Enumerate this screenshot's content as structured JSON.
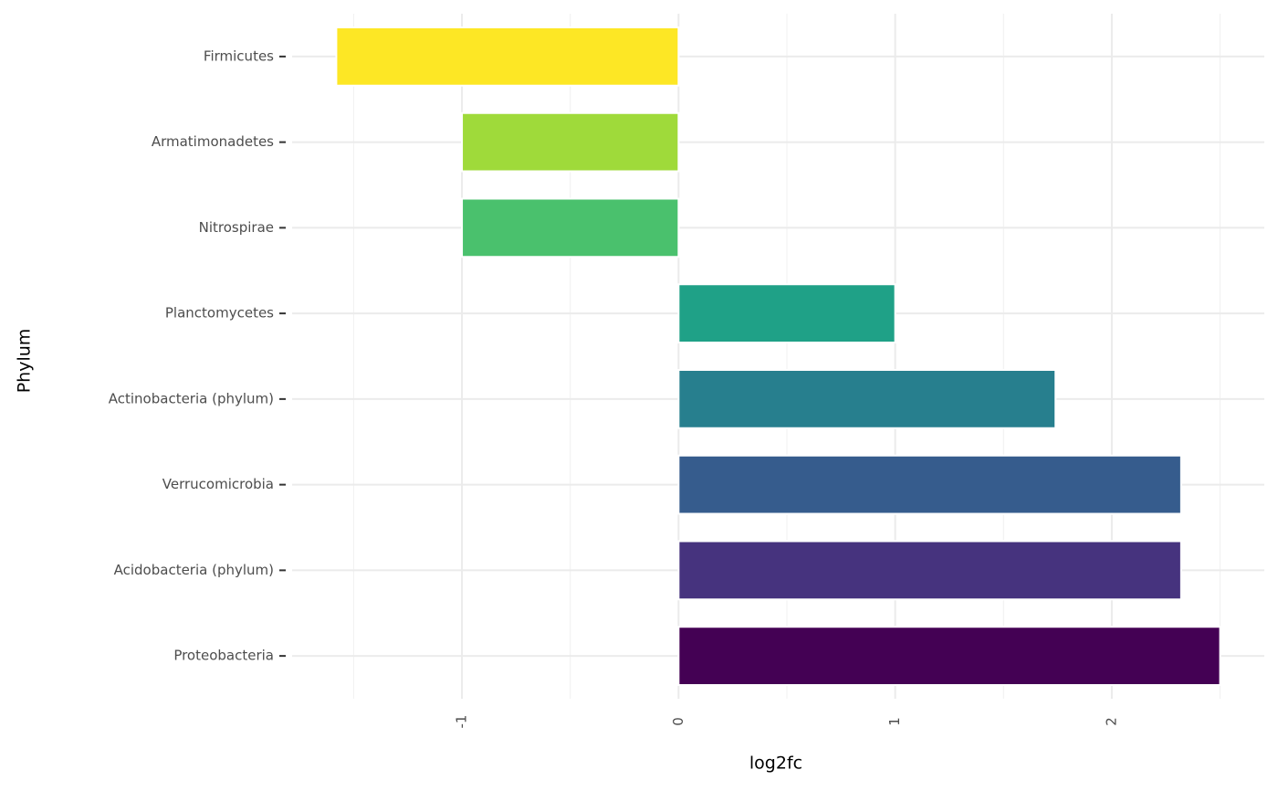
{
  "chart_data": {
    "type": "bar",
    "orientation": "horizontal",
    "x_label": "log2fc",
    "y_label": "Phylum",
    "categories": [
      "Firmicutes",
      "Armatimonadetes",
      "Nitrospirae",
      "Planctomycetes",
      "Actinobacteria (phylum)",
      "Verrucomicrobia",
      "Acidobacteria (phylum)",
      "Proteobacteria"
    ],
    "values": [
      -1.58,
      -1.0,
      -1.0,
      1.0,
      1.74,
      2.32,
      2.32,
      2.5
    ],
    "colors": [
      "#FDE725",
      "#9FDA3A",
      "#4AC16D",
      "#1FA187",
      "#277F8E",
      "#365C8D",
      "#46337E",
      "#440154"
    ],
    "xlim": [
      -1.784,
      2.704
    ],
    "xticks": [
      -1,
      0,
      1,
      2
    ],
    "xminor": [
      -1.5,
      -0.5,
      0.5,
      1.5,
      2.5
    ],
    "grid": true
  }
}
